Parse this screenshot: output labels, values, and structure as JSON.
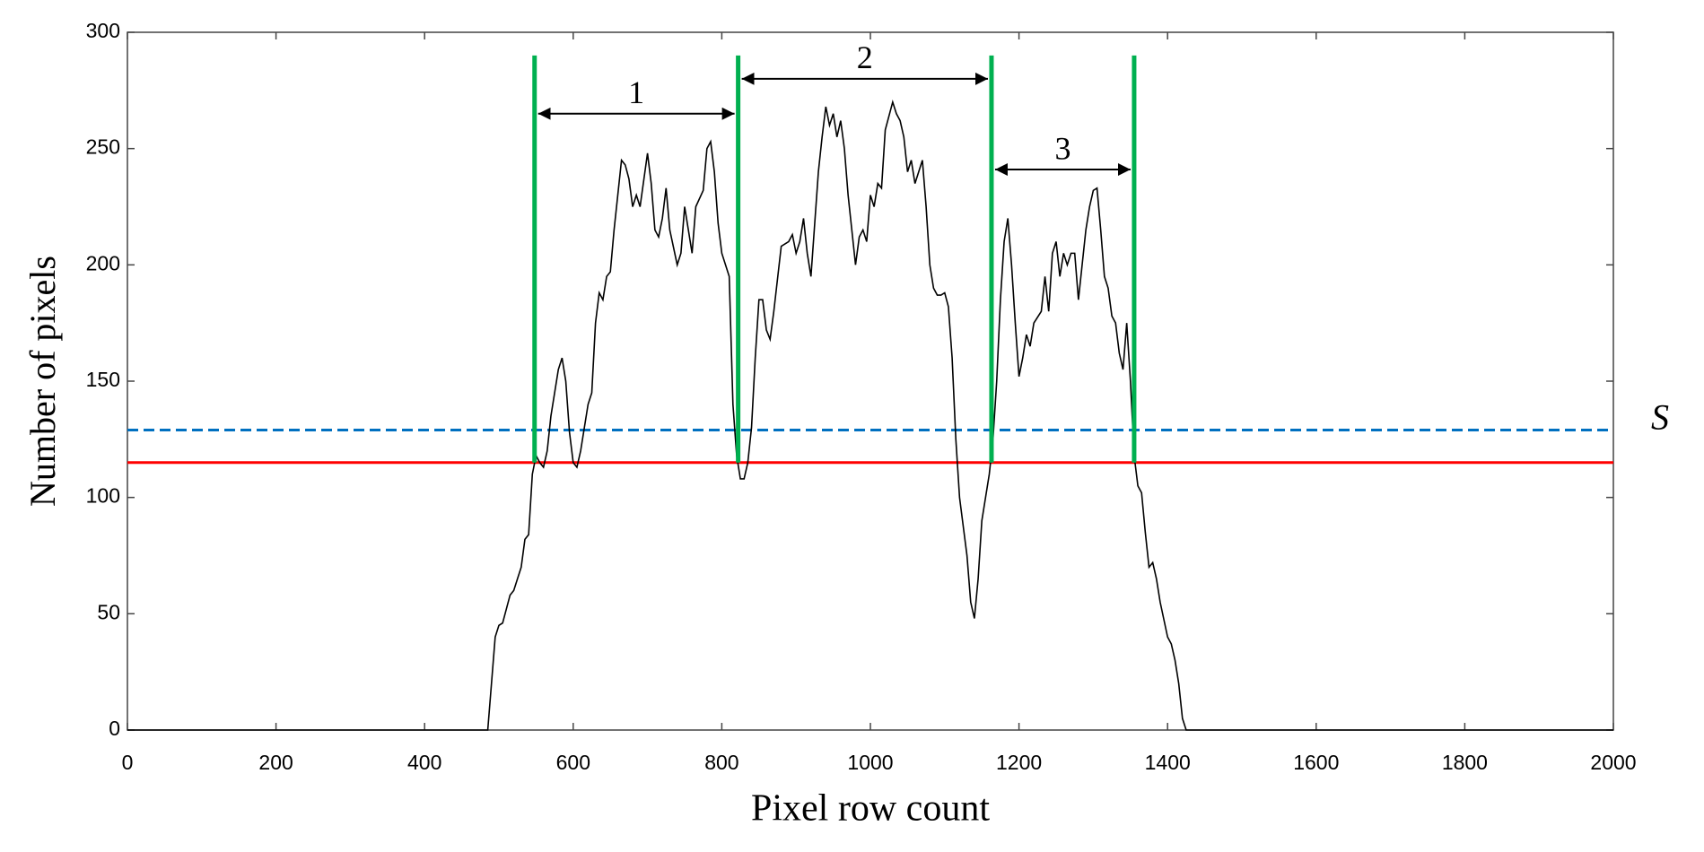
{
  "chart_data": {
    "type": "line",
    "x_label": "Pixel row count",
    "y_label": "Number of pixels",
    "xlim": [
      0,
      2000
    ],
    "ylim": [
      0,
      300
    ],
    "xticks": [
      0,
      200,
      400,
      600,
      800,
      1000,
      1200,
      1400,
      1600,
      1800,
      2000
    ],
    "yticks": [
      0,
      50,
      100,
      150,
      200,
      250,
      300
    ],
    "grid": false,
    "color": "#000000",
    "x": [
      0,
      485,
      490,
      495,
      500,
      505,
      510,
      515,
      520,
      525,
      530,
      535,
      540,
      545,
      550,
      555,
      560,
      565,
      570,
      580,
      585,
      590,
      595,
      600,
      605,
      610,
      620,
      625,
      630,
      635,
      640,
      645,
      650,
      655,
      660,
      665,
      670,
      675,
      680,
      685,
      690,
      700,
      705,
      710,
      715,
      720,
      725,
      730,
      740,
      745,
      750,
      755,
      760,
      765,
      775,
      780,
      785,
      790,
      795,
      800,
      810,
      815,
      820,
      825,
      830,
      835,
      840,
      845,
      850,
      855,
      860,
      865,
      870,
      880,
      890,
      895,
      900,
      905,
      910,
      915,
      920,
      930,
      935,
      940,
      945,
      950,
      955,
      960,
      965,
      970,
      975,
      980,
      985,
      990,
      995,
      1000,
      1005,
      1010,
      1015,
      1020,
      1030,
      1035,
      1040,
      1045,
      1050,
      1055,
      1060,
      1065,
      1070,
      1075,
      1080,
      1085,
      1090,
      1095,
      1100,
      1105,
      1110,
      1115,
      1120,
      1130,
      1135,
      1140,
      1145,
      1150,
      1160,
      1165,
      1170,
      1175,
      1180,
      1185,
      1190,
      1195,
      1200,
      1205,
      1210,
      1215,
      1220,
      1230,
      1235,
      1240,
      1245,
      1250,
      1255,
      1260,
      1265,
      1270,
      1275,
      1280,
      1285,
      1290,
      1295,
      1300,
      1305,
      1310,
      1315,
      1320,
      1325,
      1330,
      1335,
      1340,
      1345,
      1350,
      1355,
      1360,
      1365,
      1370,
      1375,
      1380,
      1385,
      1390,
      1400,
      1405,
      1410,
      1415,
      1420,
      1425,
      2000
    ],
    "values": [
      0,
      0,
      20,
      40,
      45,
      46,
      52,
      58,
      60,
      65,
      70,
      82,
      84,
      110,
      118,
      115,
      113,
      120,
      135,
      155,
      160,
      150,
      128,
      115,
      113,
      120,
      140,
      145,
      175,
      188,
      185,
      195,
      197,
      215,
      230,
      245,
      243,
      237,
      225,
      230,
      225,
      248,
      235,
      215,
      212,
      220,
      233,
      215,
      200,
      205,
      225,
      215,
      205,
      225,
      232,
      250,
      253,
      240,
      218,
      205,
      195,
      140,
      118,
      108,
      108,
      115,
      130,
      160,
      185,
      185,
      172,
      168,
      180,
      208,
      210,
      213,
      205,
      210,
      220,
      205,
      195,
      240,
      255,
      268,
      260,
      265,
      255,
      262,
      250,
      230,
      215,
      200,
      212,
      215,
      210,
      230,
      225,
      235,
      233,
      258,
      270,
      265,
      262,
      255,
      240,
      245,
      235,
      240,
      245,
      225,
      200,
      190,
      187,
      187,
      188,
      182,
      160,
      125,
      100,
      75,
      55,
      48,
      65,
      90,
      110,
      125,
      150,
      185,
      210,
      220,
      200,
      175,
      152,
      160,
      170,
      165,
      175,
      180,
      195,
      180,
      205,
      210,
      195,
      205,
      200,
      205,
      205,
      185,
      200,
      215,
      225,
      232,
      233,
      215,
      195,
      190,
      178,
      175,
      162,
      155,
      175,
      150,
      118,
      105,
      102,
      85,
      70,
      72,
      65,
      55,
      40,
      37,
      30,
      20,
      5,
      0,
      0
    ],
    "reference_lines": [
      {
        "value": 129,
        "color": "#0070c0",
        "style": "dashed",
        "label": "S"
      },
      {
        "value": 115,
        "color": "#ff0000",
        "style": "solid"
      }
    ],
    "boundaries": {
      "x": [
        548,
        822,
        1163,
        1355
      ],
      "bottom": 115,
      "top": 290,
      "color": "#00b050"
    },
    "segments": [
      {
        "label": "1",
        "y": 265
      },
      {
        "label": "2",
        "y": 280
      },
      {
        "label": "3",
        "y": 241
      }
    ]
  }
}
